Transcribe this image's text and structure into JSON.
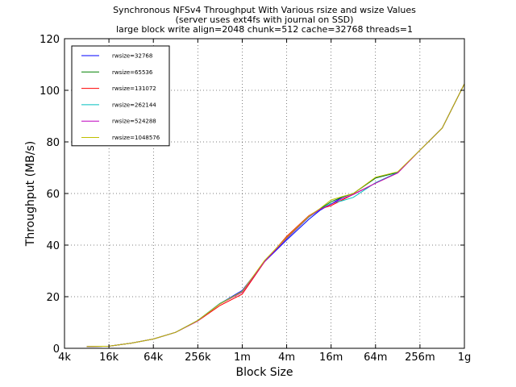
{
  "chart_data": {
    "type": "line",
    "title_lines": [
      "Synchronous NFSv4 Throughput With Various rsize and wsize Values",
      "(server uses ext4fs with journal on SSD)",
      "large block write align=2048 chunk=512 cache=32768 threads=1"
    ],
    "xlabel": "Block Size",
    "ylabel": "Throughput (MB/s)",
    "x_scale": "log2",
    "x_ticks": [
      {
        "value": 4096,
        "label": "4k"
      },
      {
        "value": 16384,
        "label": "16k"
      },
      {
        "value": 65536,
        "label": "64k"
      },
      {
        "value": 262144,
        "label": "256k"
      },
      {
        "value": 1048576,
        "label": "1m"
      },
      {
        "value": 4194304,
        "label": "4m"
      },
      {
        "value": 16777216,
        "label": "16m"
      },
      {
        "value": 67108864,
        "label": "64m"
      },
      {
        "value": 268435456,
        "label": "256m"
      },
      {
        "value": 1073741824,
        "label": "1g"
      }
    ],
    "xlim": [
      4096,
      1073741824
    ],
    "ylim": [
      0,
      120
    ],
    "y_ticks": [
      0,
      20,
      40,
      60,
      80,
      100,
      120
    ],
    "grid": true,
    "legend_position": "top-left",
    "x": [
      8192,
      16384,
      32768,
      65536,
      131072,
      262144,
      524288,
      1048576,
      2097152,
      4194304,
      8388608,
      11863283,
      16777216,
      23726566,
      33554432,
      67108864,
      134217728,
      268435456,
      536870912,
      1073741824
    ],
    "series": [
      {
        "name": "rwsize=32768",
        "color": "#0000ff",
        "values": [
          0.7,
          0.8,
          2.0,
          3.6,
          6.2,
          10.6,
          17.3,
          22.4,
          33.5,
          42.0,
          50.0,
          53.5,
          56.0,
          58.5,
          60.0,
          66.0,
          68.2,
          76.8,
          85.3,
          102.5
        ]
      },
      {
        "name": "rwsize=65536",
        "color": "#008000",
        "values": [
          0.7,
          0.8,
          2.0,
          3.6,
          6.2,
          10.8,
          17.4,
          21.8,
          33.8,
          42.7,
          51.0,
          54.0,
          56.8,
          58.6,
          60.0,
          66.0,
          68.2,
          76.8,
          85.3,
          102.5
        ]
      },
      {
        "name": "rwsize=131072",
        "color": "#ff0000",
        "values": [
          0.7,
          0.8,
          2.0,
          3.6,
          6.2,
          10.6,
          16.6,
          21.0,
          33.5,
          43.4,
          51.4,
          54.0,
          55.3,
          57.5,
          59.7,
          64.0,
          68.0,
          76.8,
          85.3,
          102.5
        ]
      },
      {
        "name": "rwsize=262144",
        "color": "#00bfbf",
        "values": [
          0.7,
          0.8,
          2.0,
          3.6,
          6.2,
          10.8,
          17.3,
          22.0,
          33.8,
          42.5,
          50.8,
          53.8,
          56.2,
          57.2,
          58.5,
          64.2,
          68.2,
          76.8,
          85.3,
          102.5
        ]
      },
      {
        "name": "rwsize=524288",
        "color": "#bf00bf",
        "values": [
          0.7,
          0.8,
          2.0,
          3.6,
          6.2,
          10.7,
          17.2,
          21.7,
          33.6,
          42.6,
          51.0,
          53.8,
          55.8,
          58.0,
          59.6,
          64.0,
          68.0,
          76.8,
          85.3,
          102.5
        ]
      },
      {
        "name": "rwsize=1048576",
        "color": "#bfbf00",
        "values": [
          0.7,
          0.8,
          2.0,
          3.6,
          6.2,
          10.8,
          17.2,
          22.0,
          34.0,
          43.0,
          51.2,
          54.2,
          57.5,
          58.8,
          60.0,
          66.3,
          68.4,
          76.8,
          85.3,
          102.5
        ]
      }
    ]
  }
}
